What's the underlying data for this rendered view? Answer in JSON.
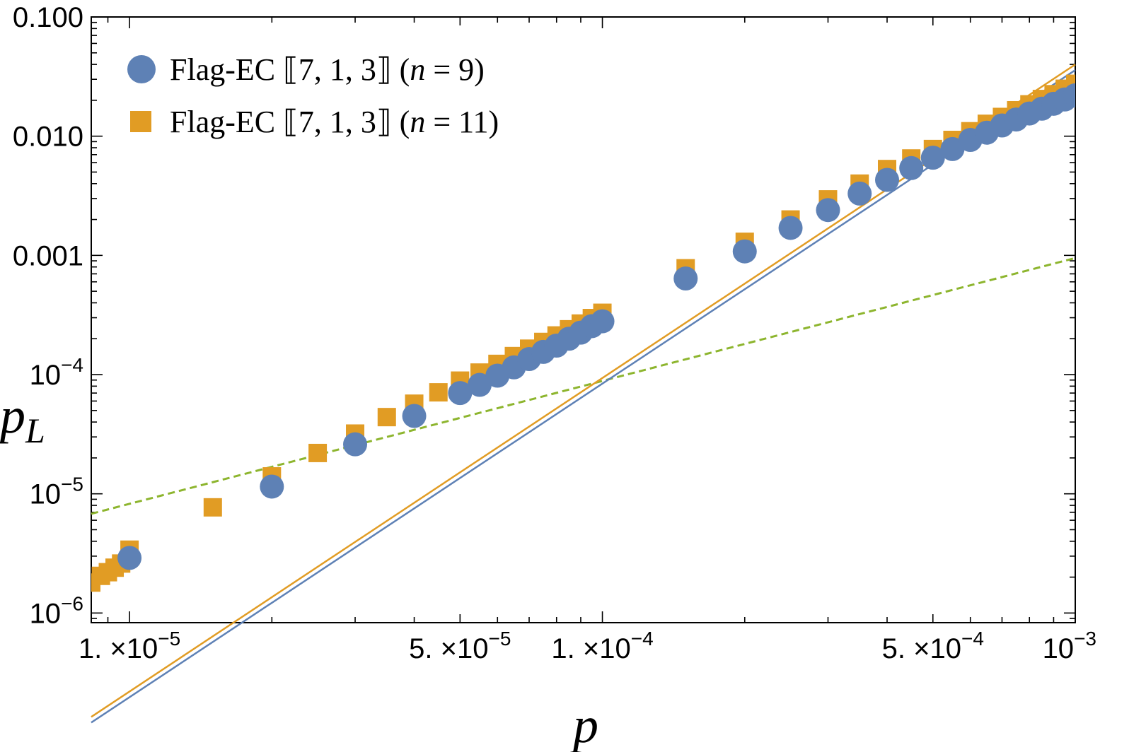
{
  "chart_data": {
    "type": "scatter",
    "xscale": "log",
    "yscale": "log",
    "xlim": [
      8.3e-06,
      0.001
    ],
    "ylim": [
      8.3e-07,
      0.1
    ],
    "xlabel": "p",
    "ylabel": "p_L",
    "ylabel_main": "p",
    "ylabel_sub": "L",
    "x_ticks": [
      {
        "value": 1e-05,
        "mantissa": "1.",
        "times": "×",
        "base": "10",
        "exp": "−5"
      },
      {
        "value": 5e-05,
        "mantissa": "5.",
        "times": "×",
        "base": "10",
        "exp": "−5"
      },
      {
        "value": 0.0001,
        "mantissa": "1.",
        "times": "×",
        "base": "10",
        "exp": "−4"
      },
      {
        "value": 0.0005,
        "mantissa": "5.",
        "times": "×",
        "base": "10",
        "exp": "−4"
      },
      {
        "value": 0.001,
        "mantissa": "",
        "times": "",
        "base": "10",
        "exp": "−3"
      }
    ],
    "y_ticks": [
      {
        "value": 1e-06,
        "base": "10",
        "exp": "−6"
      },
      {
        "value": 1e-05,
        "base": "10",
        "exp": "−5"
      },
      {
        "value": 0.0001,
        "base": "10",
        "exp": "−4"
      },
      {
        "value": 0.001,
        "text": "0.001"
      },
      {
        "value": 0.01,
        "text": "0.010"
      },
      {
        "value": 0.1,
        "text": "0.100"
      }
    ],
    "series": [
      {
        "name": "n9",
        "legend_prefix": "Flag-EC ⟦7, 1, 3⟧  (",
        "legend_var": "n",
        "legend_suffix": " = 9)",
        "marker": "circle",
        "color": "#5E81B5",
        "fit": {
          "coef": 2780000.0,
          "exponent": 2.63
        },
        "x": [
          1e-05,
          2e-05,
          3e-05,
          4e-05,
          5e-05,
          5.5e-05,
          6e-05,
          6.5e-05,
          7e-05,
          7.5e-05,
          8e-05,
          8.5e-05,
          9e-05,
          9.5e-05,
          0.0001,
          0.00015,
          0.0002,
          0.00025,
          0.0003,
          0.00035,
          0.0004,
          0.00045,
          0.0005,
          0.00055,
          0.0006,
          0.00065,
          0.0007,
          0.00075,
          0.0008,
          0.00085,
          0.0009,
          0.00095,
          0.001
        ],
        "y": [
          2.9e-06,
          1.15e-05,
          2.6e-05,
          4.5e-05,
          7e-05,
          8.2e-05,
          9.8e-05,
          0.000115,
          0.000135,
          0.000155,
          0.000175,
          0.0002,
          0.000225,
          0.000255,
          0.00028,
          0.00064,
          0.00108,
          0.0017,
          0.0024,
          0.0033,
          0.0043,
          0.0054,
          0.0066,
          0.0078,
          0.0093,
          0.0107,
          0.0123,
          0.0138,
          0.0155,
          0.017,
          0.0187,
          0.0203,
          0.022
        ]
      },
      {
        "name": "n11",
        "legend_prefix": "Flag-EC ⟦7, 1, 3⟧ (",
        "legend_var": "n",
        "legend_suffix": " = 11)",
        "marker": "square",
        "color": "#E19C24",
        "fit": {
          "coef": 3100000.0,
          "exponent": 2.63
        },
        "x": [
          8.3e-06,
          8.7e-06,
          9e-06,
          9.3e-06,
          9.6e-06,
          1e-05,
          1.5e-05,
          2e-05,
          2.5e-05,
          3e-05,
          3.5e-05,
          4e-05,
          4.5e-05,
          5e-05,
          5.5e-05,
          6e-05,
          6.5e-05,
          7e-05,
          7.5e-05,
          8e-05,
          8.5e-05,
          9e-05,
          9.5e-05,
          0.0001,
          0.00015,
          0.0002,
          0.00025,
          0.0003,
          0.00035,
          0.0004,
          0.00045,
          0.0005,
          0.00055,
          0.0006,
          0.00065,
          0.0007,
          0.00075,
          0.0008,
          0.00085,
          0.0009,
          0.00095,
          0.001
        ],
        "y": [
          1.8e-06,
          2.05e-06,
          2.2e-06,
          2.4e-06,
          2.6e-06,
          3.4e-06,
          7.7e-06,
          1.4e-05,
          2.2e-05,
          3.2e-05,
          4.4e-05,
          5.7e-05,
          7.1e-05,
          8.9e-05,
          0.000104,
          0.000123,
          0.000143,
          0.000165,
          0.000188,
          0.000213,
          0.00024,
          0.000268,
          0.000298,
          0.00033,
          0.00078,
          0.0013,
          0.002,
          0.00295,
          0.004,
          0.0053,
          0.0065,
          0.0078,
          0.0093,
          0.011,
          0.0127,
          0.0145,
          0.0165,
          0.0185,
          0.0205,
          0.0225,
          0.025,
          0.0275
        ]
      },
      {
        "name": "reference",
        "type": "line",
        "style": "dashed",
        "color": "#8DB52E",
        "x": [
          8.3e-06,
          0.001
        ],
        "y": [
          6.8e-06,
          0.00095
        ]
      }
    ]
  }
}
